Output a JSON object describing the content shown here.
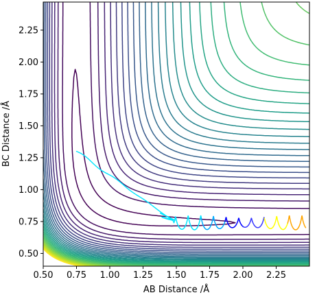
{
  "chart_data": {
    "type": "contour",
    "title": "",
    "xlabel": "AB Distance /Å",
    "ylabel": "BC Distance /Å",
    "xlim": [
      0.5,
      2.5
    ],
    "ylim": [
      0.4,
      2.47
    ],
    "x_ticks": [
      "0.50",
      "0.75",
      "1.00",
      "1.25",
      "1.50",
      "1.75",
      "2.00",
      "2.25"
    ],
    "y_ticks": [
      "0.50",
      "0.75",
      "1.00",
      "1.25",
      "1.50",
      "1.75",
      "2.00",
      "2.25"
    ],
    "grid": false,
    "legend": "none",
    "colormap": "viridis",
    "contour_levels": 30,
    "potential_surface": {
      "r_eq": 0.74,
      "well_depth": 4.75,
      "morse_alpha": 1.94,
      "sato_coupling": 0.25
    },
    "trajectory": {
      "color_progression": [
        "#00e5ff",
        "#00aaff",
        "#0000ff",
        "#3a3aff",
        "#ffff00",
        "#ffa500",
        "#ff4500"
      ],
      "start": {
        "x": 0.75,
        "y": 1.3
      },
      "turn_point": {
        "x": 1.47,
        "y": 0.76
      },
      "end": {
        "x": 2.48,
        "y": 0.74
      },
      "exit_oscillation": {
        "amplitude": 0.05,
        "center_y": 0.74,
        "period_in_x": 0.095
      }
    }
  }
}
